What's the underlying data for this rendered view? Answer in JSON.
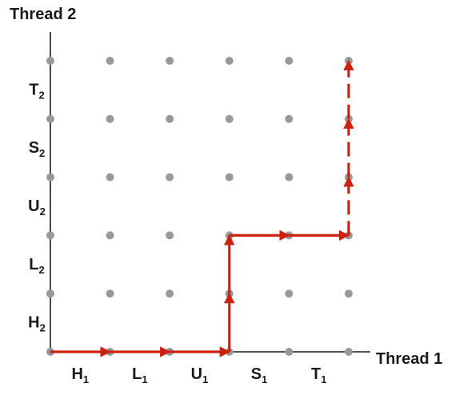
{
  "titles": {
    "y_axis": "Thread 2",
    "x_axis": "Thread 1"
  },
  "x_labels": [
    {
      "letter": "H",
      "sub": "1"
    },
    {
      "letter": "L",
      "sub": "1"
    },
    {
      "letter": "U",
      "sub": "1"
    },
    {
      "letter": "S",
      "sub": "1"
    },
    {
      "letter": "T",
      "sub": "1"
    }
  ],
  "y_labels": [
    {
      "letter": "H",
      "sub": "2"
    },
    {
      "letter": "L",
      "sub": "2"
    },
    {
      "letter": "U",
      "sub": "2"
    },
    {
      "letter": "S",
      "sub": "2"
    },
    {
      "letter": "T",
      "sub": "2"
    }
  ],
  "grid": {
    "columns": 6,
    "rows": 6
  },
  "trajectory": {
    "color": "#cc2211",
    "points_color": "#999999",
    "segments": [
      {
        "from": [
          0,
          0
        ],
        "to": [
          1,
          0
        ],
        "style": "solid"
      },
      {
        "from": [
          1,
          0
        ],
        "to": [
          2,
          0
        ],
        "style": "solid"
      },
      {
        "from": [
          2,
          0
        ],
        "to": [
          3,
          0
        ],
        "style": "solid"
      },
      {
        "from": [
          3,
          0
        ],
        "to": [
          3,
          1
        ],
        "style": "solid"
      },
      {
        "from": [
          3,
          1
        ],
        "to": [
          3,
          2
        ],
        "style": "solid"
      },
      {
        "from": [
          3,
          2
        ],
        "to": [
          4,
          2
        ],
        "style": "solid"
      },
      {
        "from": [
          4,
          2
        ],
        "to": [
          5,
          2
        ],
        "style": "solid"
      },
      {
        "from": [
          5,
          2
        ],
        "to": [
          5,
          3
        ],
        "style": "dashed"
      },
      {
        "from": [
          5,
          3
        ],
        "to": [
          5,
          4
        ],
        "style": "dashed"
      },
      {
        "from": [
          5,
          4
        ],
        "to": [
          5,
          5
        ],
        "style": "dashed"
      }
    ]
  }
}
